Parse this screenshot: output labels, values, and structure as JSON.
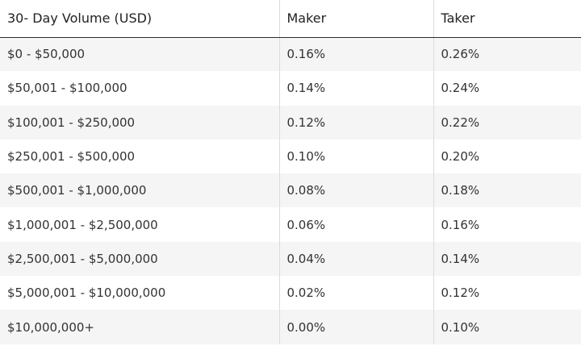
{
  "table": {
    "headers": {
      "volume": "30- Day Volume (USD)",
      "maker": "Maker",
      "taker": "Taker"
    },
    "rows": [
      {
        "volume": "$0 - $50,000",
        "maker": "0.16%",
        "taker": "0.26%"
      },
      {
        "volume": "$50,001 - $100,000",
        "maker": "0.14%",
        "taker": "0.24%"
      },
      {
        "volume": "$100,001 - $250,000",
        "maker": "0.12%",
        "taker": "0.22%"
      },
      {
        "volume": "$250,001 - $500,000",
        "maker": "0.10%",
        "taker": "0.20%"
      },
      {
        "volume": "$500,001 - $1,000,000",
        "maker": "0.08%",
        "taker": "0.18%"
      },
      {
        "volume": "$1,000,001 - $2,500,000",
        "maker": "0.06%",
        "taker": "0.16%"
      },
      {
        "volume": "$2,500,001 - $5,000,000",
        "maker": "0.04%",
        "taker": "0.14%"
      },
      {
        "volume": "$5,000,001 - $10,000,000",
        "maker": "0.02%",
        "taker": "0.12%"
      },
      {
        "volume": "$10,000,000+",
        "maker": "0.00%",
        "taker": "0.10%"
      }
    ]
  },
  "colors": {
    "stripe": "#f5f5f5",
    "header_rule": "#2b2b2b",
    "column_divider": "#dcdcdc",
    "text": "#333333"
  }
}
